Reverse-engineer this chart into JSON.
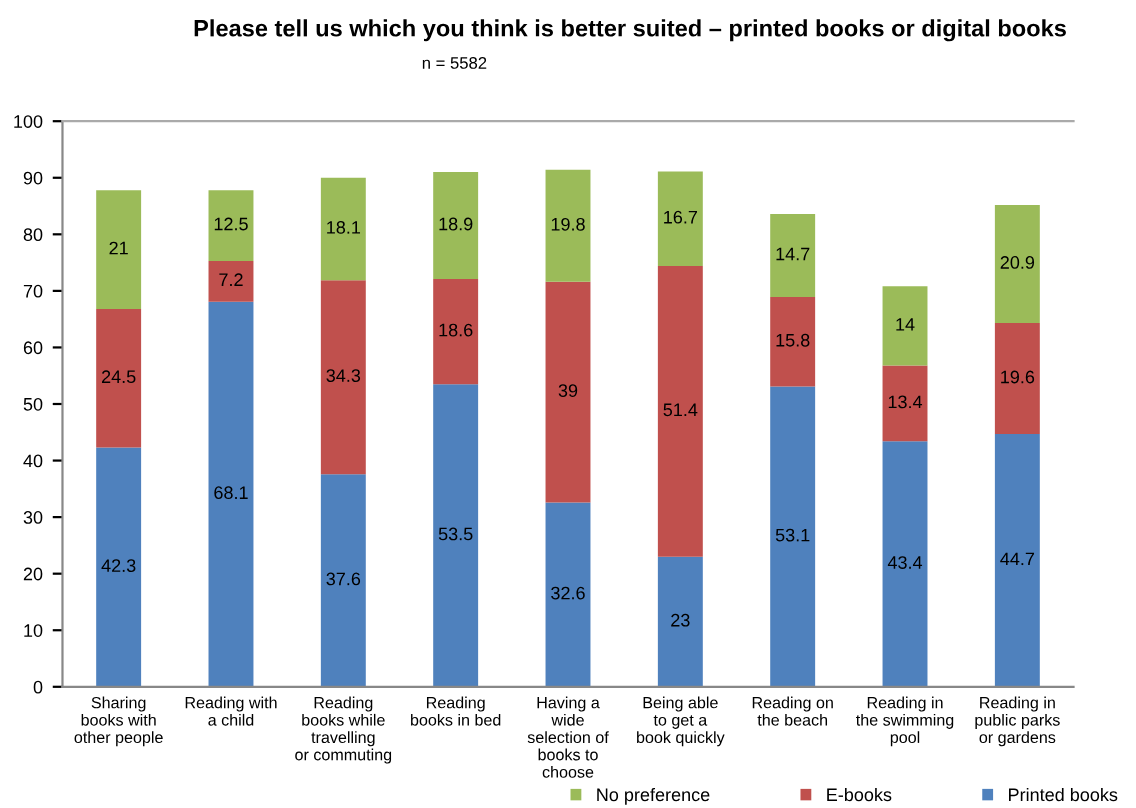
{
  "chart_data": {
    "type": "bar",
    "stacked": true,
    "title": "Please tell us which you think is better suited – printed books or digital books",
    "subtitle": "n = 5582",
    "categories": [
      "Sharing books with other people",
      "Reading with a child",
      "Reading books while travelling or commuting",
      "Reading books in bed",
      "Having a wide selection of books to choose",
      "Being able to get a book quickly",
      "Reading on the beach",
      "Reading in the swimming pool",
      "Reading in public parks or gardens"
    ],
    "series": [
      {
        "name": "Printed books",
        "color": "#4f81bd",
        "values": [
          42.3,
          68.1,
          37.6,
          53.5,
          32.6,
          23,
          53.1,
          43.4,
          44.7
        ]
      },
      {
        "name": "E-books",
        "color": "#c0504d",
        "values": [
          24.5,
          7.2,
          34.3,
          18.6,
          39,
          51.4,
          15.8,
          13.4,
          19.6
        ]
      },
      {
        "name": "No preference",
        "color": "#9bbb59",
        "values": [
          21,
          12.5,
          18.1,
          18.9,
          19.8,
          16.7,
          14.7,
          14,
          20.9
        ]
      }
    ],
    "data_labels": true,
    "ylim": [
      0,
      100
    ],
    "yticks": [
      0,
      10,
      20,
      30,
      40,
      50,
      60,
      70,
      80,
      90,
      100
    ],
    "grid": false,
    "legend": "bottom right"
  }
}
